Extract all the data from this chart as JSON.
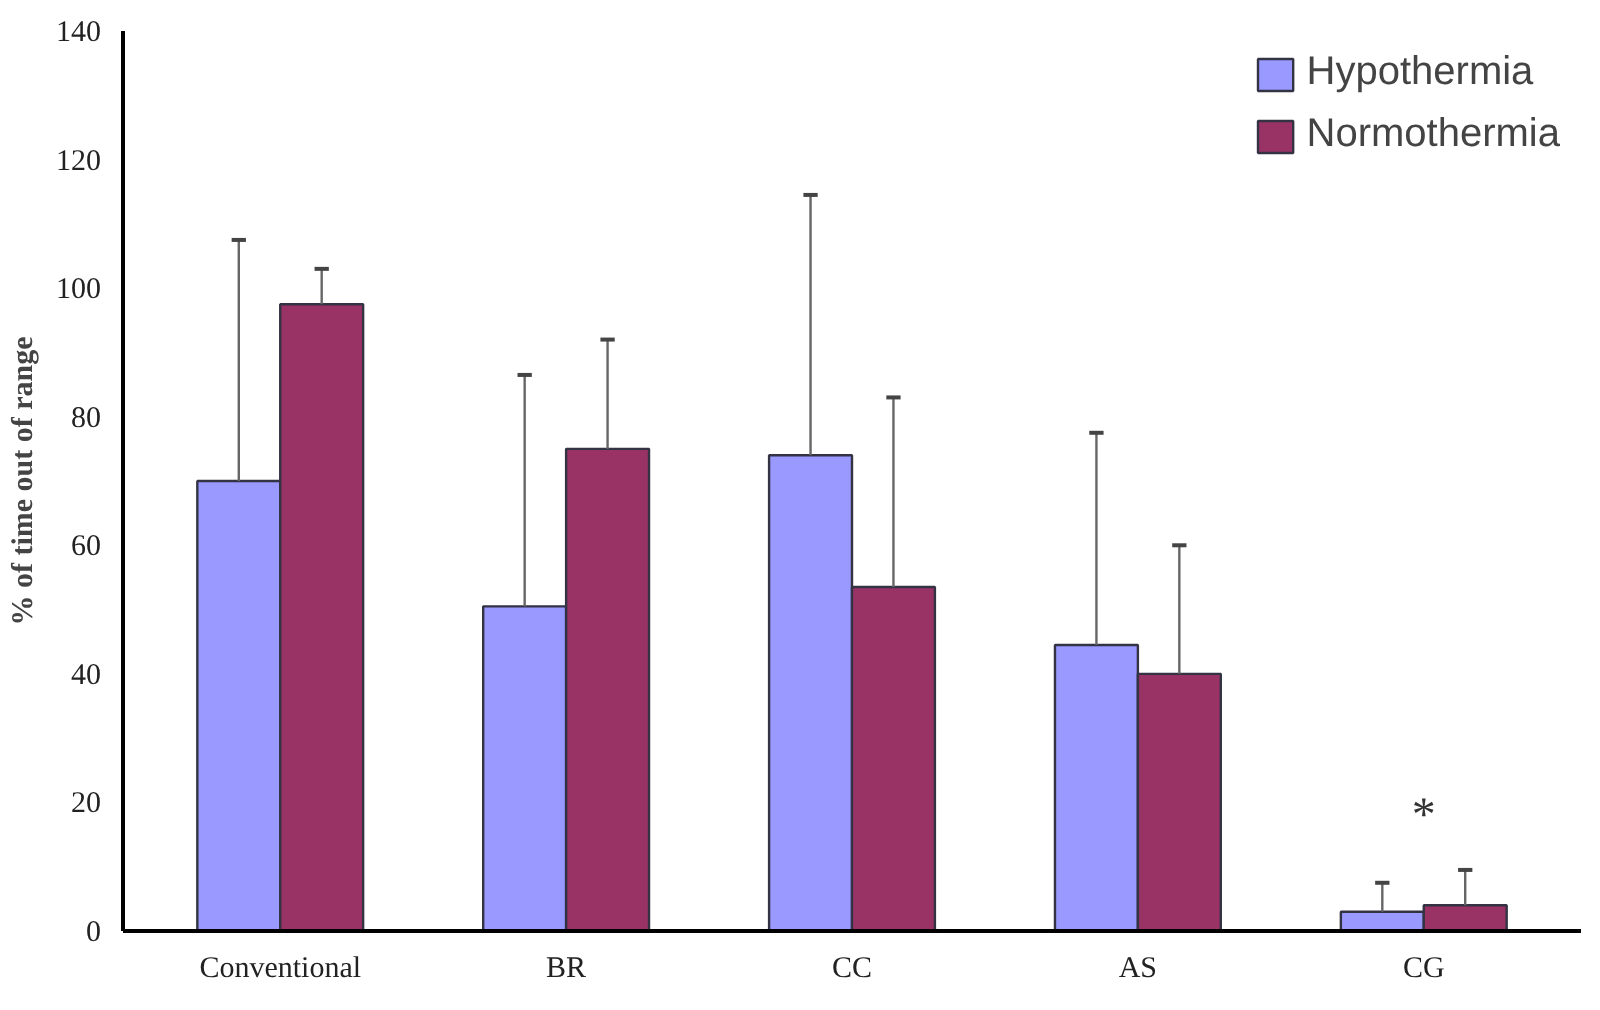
{
  "chart_data": {
    "type": "bar",
    "ylabel": "% of time out of range",
    "categories": [
      "Conventional",
      "BR",
      "CC",
      "AS",
      "CG"
    ],
    "series": [
      {
        "name": "Hypothermia",
        "color": "#9999ff",
        "values": [
          70,
          50.5,
          74,
          44.5,
          3
        ],
        "errors": [
          [
            70,
            107.5
          ],
          [
            50.5,
            86.5
          ],
          [
            74,
            114.5
          ],
          [
            44.5,
            77.5
          ],
          [
            3,
            7.5
          ]
        ]
      },
      {
        "name": "Normothermia",
        "color": "#993366",
        "values": [
          97.5,
          75,
          53.5,
          40,
          4
        ],
        "errors": [
          [
            97.5,
            103
          ],
          [
            75,
            92
          ],
          [
            53.5,
            83
          ],
          [
            40,
            60
          ],
          [
            4,
            9.5
          ]
        ]
      }
    ],
    "ylim": [
      0,
      140
    ],
    "yticks": [
      0,
      20,
      40,
      60,
      80,
      100,
      120,
      140
    ],
    "annotations": [
      "*"
    ],
    "grid": false,
    "legend": "top right"
  }
}
